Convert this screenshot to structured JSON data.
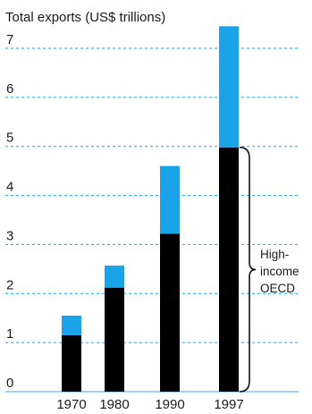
{
  "chart_data": {
    "type": "bar",
    "stacked": true,
    "title": "Total exports (US$ trillions)",
    "categories": [
      "1970",
      "1980",
      "1990",
      "1997"
    ],
    "series": [
      {
        "values": [
          1.15,
          2.12,
          3.22,
          4.98
        ],
        "color": "#000000"
      },
      {
        "values": [
          0.4,
          0.45,
          1.38,
          2.47
        ],
        "color": "#1aa3e8"
      }
    ],
    "ylim": [
      0,
      7
    ],
    "yticks": [
      "0",
      "1",
      "2",
      "3",
      "4",
      "5",
      "6",
      "7"
    ],
    "grid": true,
    "annotation": {
      "lines": [
        "High-",
        "income",
        "OECD"
      ],
      "brace_from": 0,
      "brace_to": 4.98
    }
  }
}
